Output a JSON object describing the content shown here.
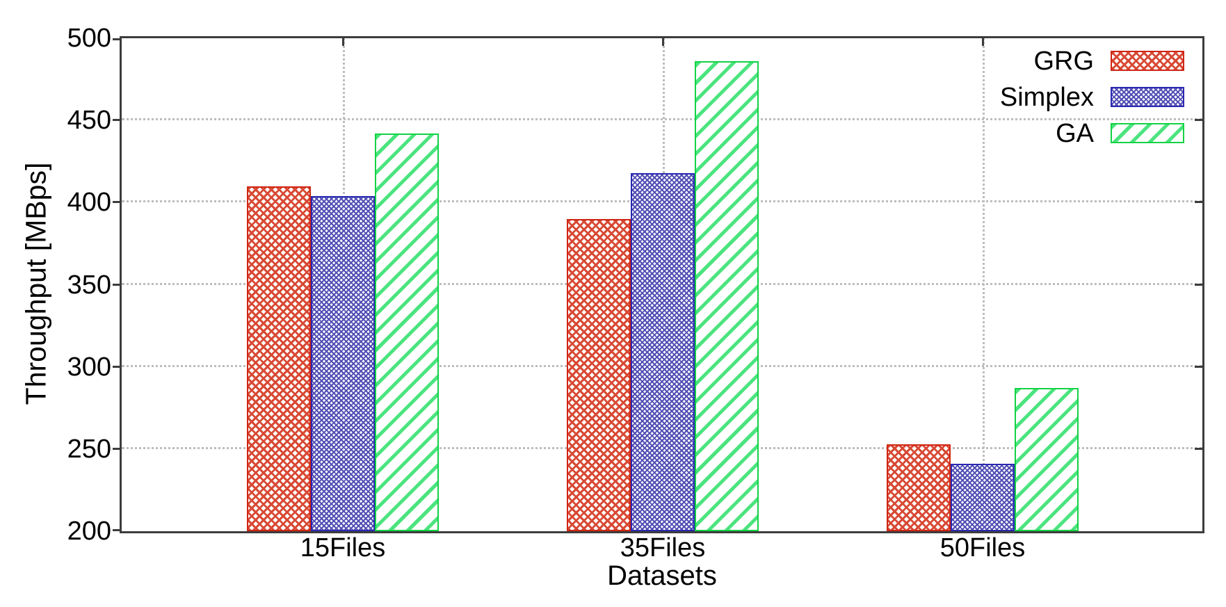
{
  "chart_data": {
    "type": "bar",
    "title": "",
    "xlabel": "Datasets",
    "ylabel": "Throughput [MBps]",
    "categories": [
      "15Files",
      "35Files",
      "50Files"
    ],
    "series": [
      {
        "name": "GRG",
        "pattern": "crosshatch-coarse",
        "line_color": "#d84934",
        "border_color": "#d02513",
        "values": [
          410,
          390,
          253
        ]
      },
      {
        "name": "Simplex",
        "pattern": "crosshatch-fine",
        "line_color": "#514fb4",
        "border_color": "#2a28b0",
        "values": [
          404,
          418,
          241
        ]
      },
      {
        "name": "GA",
        "pattern": "diagonal-forward",
        "line_color": "#4be47e",
        "border_color": "#12d243",
        "values": [
          442,
          486,
          287
        ]
      }
    ],
    "ylim": [
      200,
      500
    ],
    "yticks": [
      200,
      250,
      300,
      350,
      400,
      450,
      500
    ],
    "grid": true,
    "grid_color": "#bdbdbd",
    "axis_color": "#3c3c3c",
    "legend_position": "top-right",
    "background_color": "#ffffff"
  }
}
